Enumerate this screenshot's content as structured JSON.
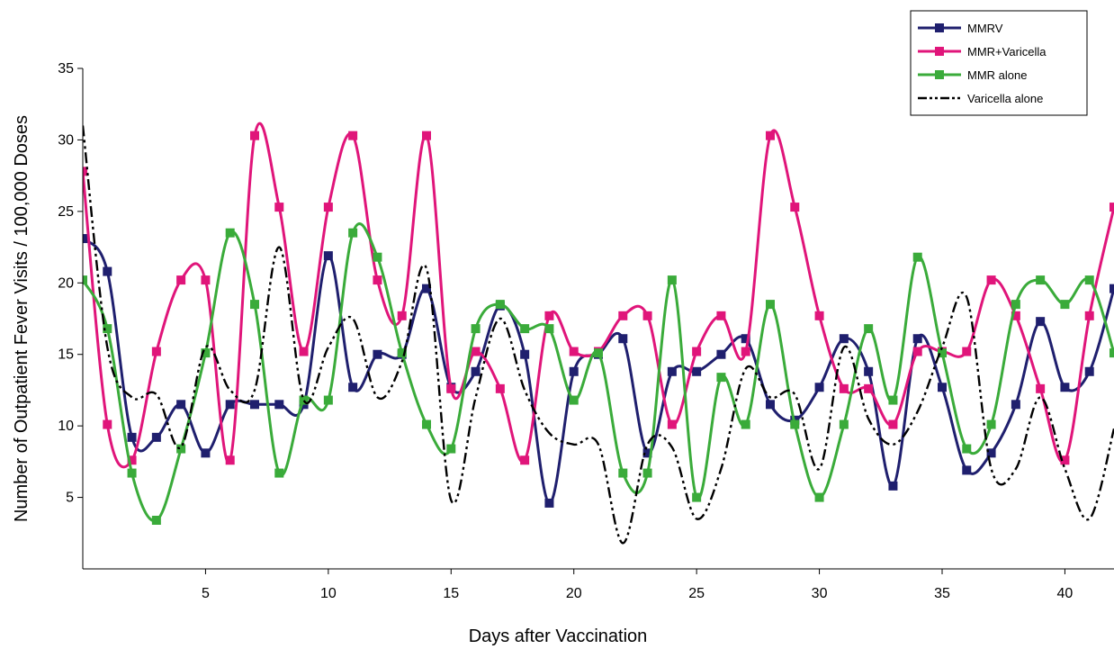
{
  "chart_data": {
    "type": "line",
    "xlabel": "Days after Vaccination",
    "ylabel": "Number of Outpatient Fever Visits / 100,000 Doses",
    "xlim": [
      0,
      42
    ],
    "ylim": [
      0,
      35
    ],
    "x_ticks": [
      5,
      10,
      15,
      20,
      25,
      30,
      35,
      40
    ],
    "y_ticks": [
      5,
      10,
      15,
      20,
      25,
      30,
      35
    ],
    "legend_position": "top-right",
    "grid": false,
    "smoothed": true,
    "series": [
      {
        "name": "MMRV",
        "color": "#1f1f6e",
        "marker": "square",
        "x": [
          0,
          1,
          2,
          3,
          4,
          5,
          6,
          7,
          8,
          9,
          10,
          11,
          12,
          13,
          14,
          15,
          16,
          17,
          18,
          19,
          20,
          21,
          22,
          23,
          24,
          25,
          26,
          27,
          28,
          29,
          30,
          31,
          32,
          33,
          34,
          35,
          36,
          37,
          38,
          39,
          40,
          41,
          42
        ],
        "values": [
          23.1,
          20.8,
          9.2,
          9.2,
          11.5,
          8.1,
          11.5,
          11.5,
          11.5,
          11.5,
          21.9,
          12.7,
          15.0,
          15.0,
          19.6,
          12.7,
          13.8,
          18.4,
          15.0,
          4.6,
          13.8,
          15.0,
          16.1,
          8.1,
          13.8,
          13.8,
          15.0,
          16.1,
          11.5,
          10.4,
          12.7,
          16.1,
          13.8,
          5.8,
          16.1,
          12.7,
          6.9,
          8.1,
          11.5,
          17.3,
          12.7,
          13.8,
          19.6
        ]
      },
      {
        "name": "MMR+Varicella",
        "color": "#e0157a",
        "marker": "square",
        "x": [
          0,
          1,
          2,
          3,
          4,
          5,
          6,
          7,
          8,
          9,
          10,
          11,
          12,
          13,
          14,
          15,
          16,
          17,
          18,
          19,
          20,
          21,
          22,
          23,
          24,
          25,
          26,
          27,
          28,
          29,
          30,
          31,
          32,
          33,
          34,
          35,
          36,
          37,
          38,
          39,
          40,
          41,
          42
        ],
        "values": [
          27.8,
          10.1,
          7.6,
          15.2,
          20.2,
          20.2,
          7.6,
          30.3,
          25.3,
          15.2,
          25.3,
          30.3,
          20.2,
          17.7,
          30.3,
          12.6,
          15.2,
          12.6,
          7.6,
          17.7,
          15.2,
          15.2,
          17.7,
          17.7,
          10.1,
          15.2,
          17.7,
          15.2,
          30.3,
          25.3,
          17.7,
          12.6,
          12.6,
          10.1,
          15.2,
          15.2,
          15.2,
          20.2,
          17.7,
          12.6,
          7.6,
          17.7,
          25.3
        ]
      },
      {
        "name": "MMR alone",
        "color": "#3aab3a",
        "marker": "square",
        "x": [
          0,
          1,
          2,
          3,
          4,
          5,
          6,
          7,
          8,
          9,
          10,
          11,
          12,
          13,
          14,
          15,
          16,
          17,
          18,
          19,
          20,
          21,
          22,
          23,
          24,
          25,
          26,
          27,
          28,
          29,
          30,
          31,
          32,
          33,
          34,
          35,
          36,
          37,
          38,
          39,
          40,
          41,
          42
        ],
        "values": [
          20.2,
          16.8,
          6.7,
          3.4,
          8.4,
          15.1,
          23.5,
          18.5,
          6.7,
          11.8,
          11.8,
          23.5,
          21.8,
          15.1,
          10.1,
          8.4,
          16.8,
          18.5,
          16.8,
          16.8,
          11.8,
          15.1,
          6.7,
          6.7,
          20.2,
          5.0,
          13.4,
          10.1,
          18.5,
          10.1,
          5.0,
          10.1,
          16.8,
          11.8,
          21.8,
          15.1,
          8.4,
          10.1,
          18.5,
          20.2,
          18.5,
          20.2,
          15.1
        ]
      },
      {
        "name": "Varicella alone",
        "color": "#000000",
        "marker": "none",
        "dash": "dash-dot-dot",
        "x": [
          0,
          1,
          2,
          3,
          4,
          5,
          6,
          7,
          8,
          9,
          10,
          11,
          12,
          13,
          14,
          15,
          16,
          17,
          18,
          19,
          20,
          21,
          22,
          23,
          24,
          25,
          26,
          27,
          28,
          29,
          30,
          31,
          32,
          33,
          34,
          35,
          36,
          37,
          38,
          39,
          40,
          41,
          42
        ],
        "values": [
          31.0,
          15.5,
          12.0,
          12.2,
          8.5,
          15.5,
          12.5,
          12.5,
          22.5,
          11.8,
          15.5,
          17.5,
          12.0,
          14.5,
          21.0,
          4.8,
          12.0,
          17.5,
          12.5,
          9.5,
          8.7,
          8.7,
          1.8,
          8.7,
          8.5,
          3.5,
          7.0,
          14.0,
          12.0,
          12.2,
          7.0,
          15.5,
          10.5,
          8.7,
          11.0,
          15.5,
          19.0,
          7.0,
          7.0,
          12.0,
          7.0,
          3.5,
          9.8
        ]
      }
    ]
  }
}
